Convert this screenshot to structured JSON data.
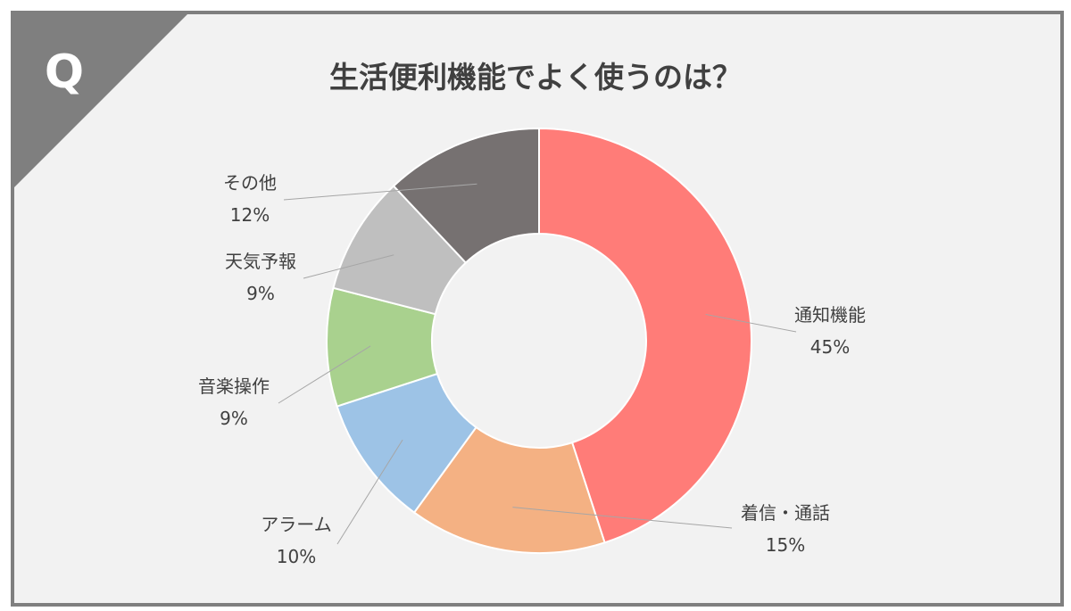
{
  "question_mark": "Q",
  "chart_data": {
    "type": "donut",
    "title": "生活便利機能でよく使うのは？",
    "categories": [
      "通知機能",
      "着信・通話",
      "アラーム",
      "音楽操作",
      "天気予報",
      "その他"
    ],
    "values": [
      45,
      15,
      10,
      9,
      9,
      12
    ],
    "value_labels": [
      "45%",
      "15%",
      "10%",
      "9%",
      "9%",
      "12%"
    ],
    "colors": [
      "#ff7c78",
      "#f4b183",
      "#9dc3e6",
      "#a9d18e",
      "#bfbfbf",
      "#767171"
    ],
    "start": "12 o'clock",
    "direction": "clockwise",
    "legend": "none"
  }
}
